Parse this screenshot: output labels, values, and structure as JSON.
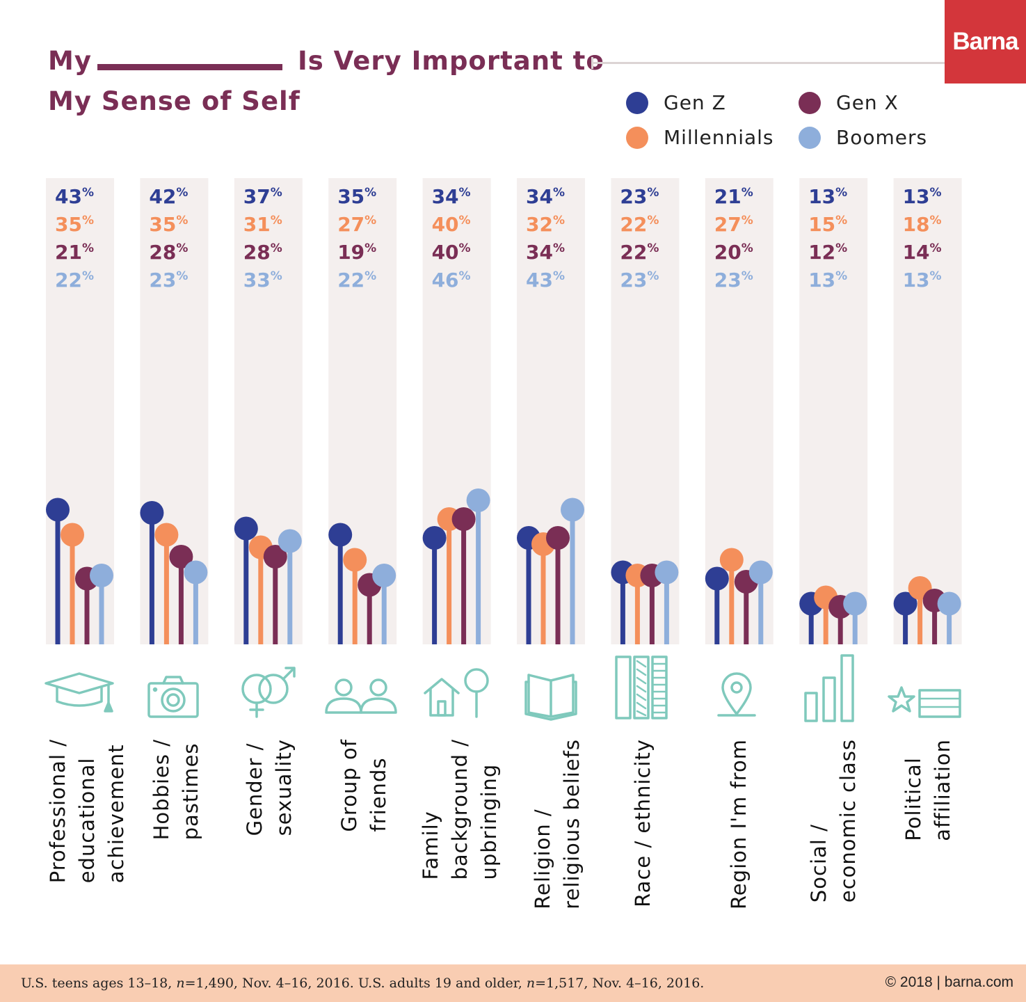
{
  "title": {
    "part1": "My",
    "part2": "Is Very Important to",
    "part3": "My Sense of Self"
  },
  "brand": {
    "logo_text": "Barna",
    "color": "#d3363b"
  },
  "footer": {
    "note_prefix": "U.S. teens ages 13–18, ",
    "note_n1": "n",
    "note_mid": "=1,490, Nov. 4–16, 2016. U.S. adults 19 and older, ",
    "note_n2": "n",
    "note_suffix": "=1,517, Nov. 4–16, 2016.",
    "copyright": "© 2018 | barna.com"
  },
  "chart_data": {
    "type": "lollipop",
    "title": "My ____ Is Very Important to My Sense of Self",
    "unit": "%",
    "ylim": [
      0,
      100
    ],
    "legend_placement": "top-right",
    "categories": [
      "Professional / educational achievement",
      "Hobbies / pastimes",
      "Gender / sexuality",
      "Group of friends",
      "Family background / upbringing",
      "Religion / religious beliefs",
      "Race / ethnicity",
      "Region I'm from",
      "Social / economic class",
      "Political affiliation"
    ],
    "category_labels": [
      "Professional /\neducational\nachievement",
      "Hobbies /\npastimes",
      "Gender /\nsexuality",
      "Group of\nfriends",
      "Family\nbackground /\nupbringing",
      "Religion /\nreligious beliefs",
      "Race / ethnicity",
      "Region I'm from",
      "Social /\neconomic class",
      "Political\naffiliation"
    ],
    "icons": [
      "graduation-cap-icon",
      "camera-icon",
      "gender-symbols-icon",
      "people-icon",
      "house-tree-icon",
      "open-book-icon",
      "ethnicity-bars-icon",
      "map-pin-icon",
      "bar-chart-icon",
      "star-flag-icon"
    ],
    "icon_color": "#7fc9bc",
    "series": [
      {
        "name": "Gen Z",
        "color": "#2e3e94",
        "values": [
          43,
          42,
          37,
          35,
          34,
          34,
          23,
          21,
          13,
          13
        ]
      },
      {
        "name": "Millennials",
        "color": "#f48f5b",
        "values": [
          35,
          35,
          31,
          27,
          40,
          32,
          22,
          27,
          15,
          18
        ]
      },
      {
        "name": "Gen X",
        "color": "#7a2e55",
        "values": [
          21,
          28,
          28,
          19,
          40,
          34,
          22,
          20,
          12,
          14
        ]
      },
      {
        "name": "Boomers",
        "color": "#8eaedb",
        "values": [
          22,
          23,
          33,
          22,
          46,
          43,
          23,
          23,
          13,
          13
        ]
      }
    ]
  }
}
